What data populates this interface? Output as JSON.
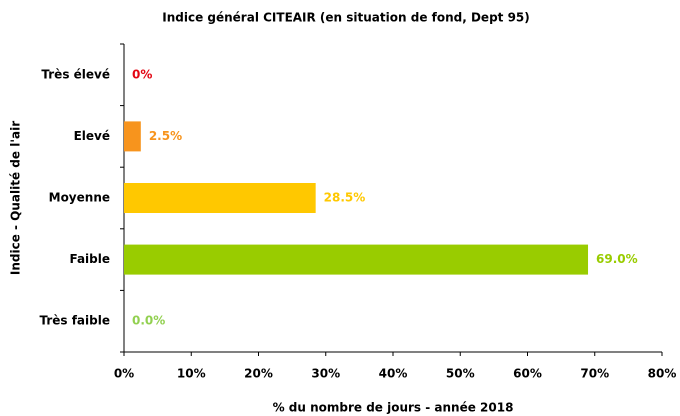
{
  "chart_data": {
    "type": "barh",
    "title": "Indice général CITEAIR (en situation de fond, Dept 95)",
    "xlabel": "% du nombre de jours - année 2018",
    "ylabel": "Indice - Qualité de l'air",
    "categories": [
      "Très élevé",
      "Elevé",
      "Moyenne",
      "Faible",
      "Très faible"
    ],
    "values": [
      0,
      2.5,
      28.5,
      69.0,
      0.0
    ],
    "value_labels": [
      "0%",
      "2.5%",
      "28.5%",
      "69.0%",
      "0.0%"
    ],
    "colors": [
      "#e30613",
      "#f7941d",
      "#ffc800",
      "#99cc00",
      "#92d050"
    ],
    "xlim": [
      0,
      80
    ],
    "xticks": [
      {
        "value": 0,
        "label": "0%"
      },
      {
        "value": 10,
        "label": "10%"
      },
      {
        "value": 20,
        "label": "20%"
      },
      {
        "value": 30,
        "label": "30%"
      },
      {
        "value": 40,
        "label": "40%"
      },
      {
        "value": 50,
        "label": "50%"
      },
      {
        "value": 60,
        "label": "60%"
      },
      {
        "value": 70,
        "label": "70%"
      },
      {
        "value": 80,
        "label": "80%"
      }
    ],
    "grid": false
  }
}
